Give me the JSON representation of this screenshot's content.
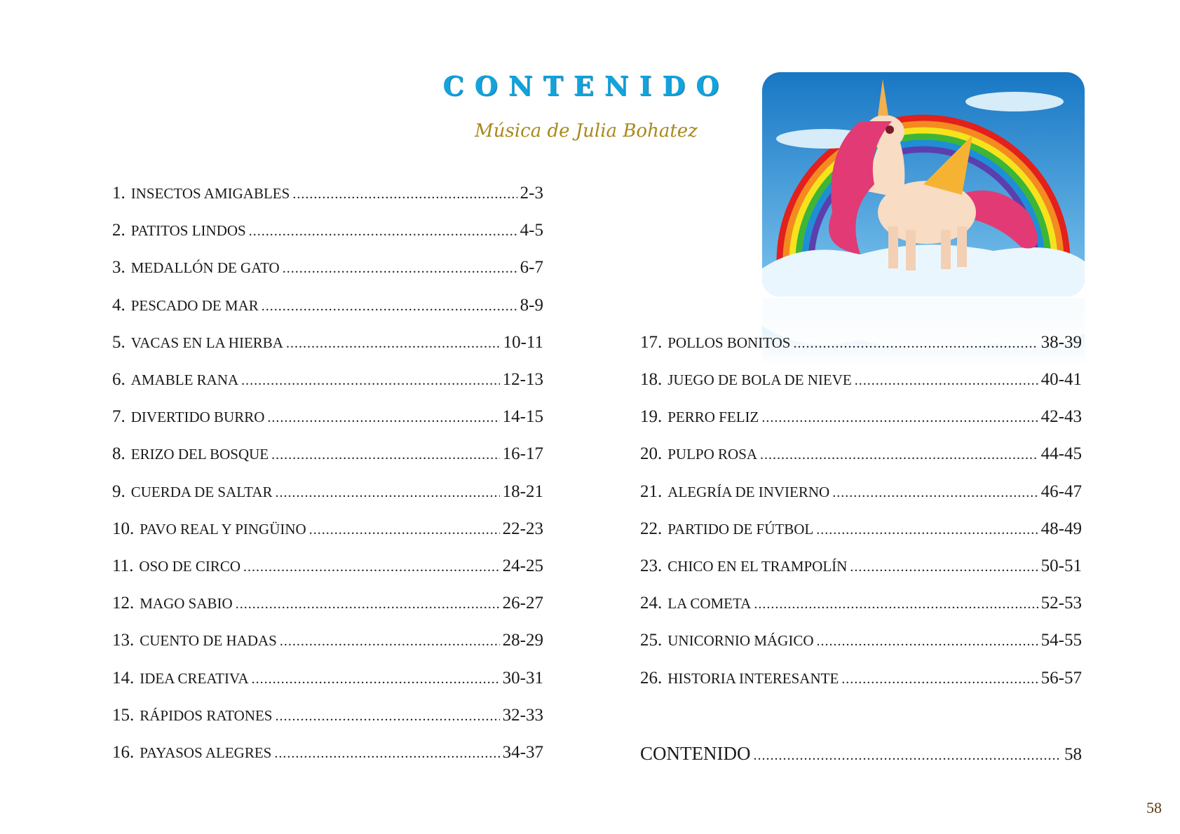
{
  "header": {
    "title": "CONTENIDO",
    "subtitle": "Música de Julia Bohatez"
  },
  "toc_left": [
    {
      "num": "1.",
      "title": "INSECTOS AMIGABLES",
      "pages": "2-3"
    },
    {
      "num": "2.",
      "title": "PATITOS LINDOS",
      "pages": "4-5"
    },
    {
      "num": "3.",
      "title": "MEDALLÓN DE GATO",
      "pages": "6-7"
    },
    {
      "num": "4.",
      "title": "PESCADO DE MAR",
      "pages": "8-9"
    },
    {
      "num": "5.",
      "title": "VACAS EN LA HIERBA",
      "pages": "10-11"
    },
    {
      "num": "6.",
      "title": "AMABLE RANA",
      "pages": "12-13"
    },
    {
      "num": "7.",
      "title": "DIVERTIDO BURRO",
      "pages": "14-15"
    },
    {
      "num": "8.",
      "title": "ERIZO DEL BOSQUE",
      "pages": "16-17"
    },
    {
      "num": "9.",
      "title": "CUERDA DE SALTAR",
      "pages": "18-21"
    },
    {
      "num": "10.",
      "title": "PAVO REAL Y PINGÜINO",
      "pages": "22-23"
    },
    {
      "num": "11.",
      "title": "OSO DE CIRCO",
      "pages": "24-25"
    },
    {
      "num": "12.",
      "title": "MAGO SABIO",
      "pages": "26-27"
    },
    {
      "num": "13.",
      "title": "CUENTO DE HADAS",
      "pages": "28-29"
    },
    {
      "num": "14.",
      "title": "IDEA CREATIVA",
      "pages": "30-31"
    },
    {
      "num": "15.",
      "title": "RÁPIDOS RATONES",
      "pages": "32-33"
    },
    {
      "num": "16.",
      "title": "PAYASOS ALEGRES",
      "pages": "34-37"
    }
  ],
  "toc_right": [
    {
      "num": "17.",
      "title": "POLLOS BONITOS",
      "pages": "38-39"
    },
    {
      "num": "18.",
      "title": "JUEGO DE BOLA DE NIEVE",
      "pages": "40-41"
    },
    {
      "num": "19.",
      "title": "PERRO FELIZ",
      "pages": "42-43"
    },
    {
      "num": "20.",
      "title": "PULPO ROSA",
      "pages": "44-45"
    },
    {
      "num": "21.",
      "title": "ALEGRÍA DE INVIERNO",
      "pages": "46-47"
    },
    {
      "num": "22.",
      "title": "PARTIDO DE FÚTBOL",
      "pages": "48-49"
    },
    {
      "num": "23.",
      "title": "CHICO EN EL TRAMPOLÍN",
      "pages": "50-51"
    },
    {
      "num": "24.",
      "title": "LA COMETA",
      "pages": "52-53"
    },
    {
      "num": "25.",
      "title": "UNICORNIO MÁGICO",
      "pages": "54-55"
    },
    {
      "num": "26.",
      "title": "HISTORIA INTERESANTE",
      "pages": "56-57"
    }
  ],
  "toc_contents": {
    "title": "CONTENIDO",
    "pages": "58"
  },
  "page_number": "58",
  "illustration": {
    "icon": "unicorn-rainbow-illustration"
  }
}
